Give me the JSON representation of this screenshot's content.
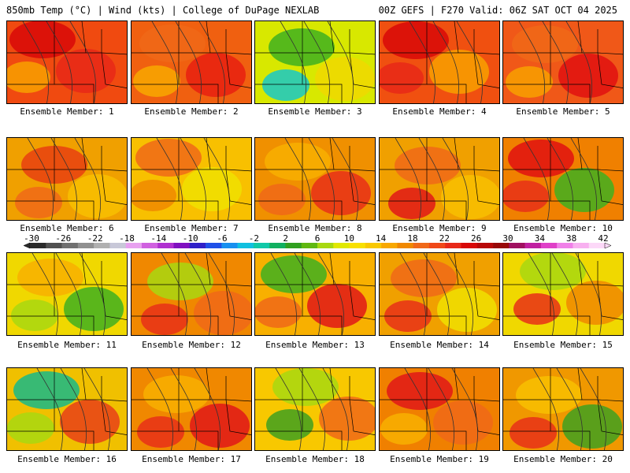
{
  "header": {
    "left": "850mb Temp (°C) | Wind (kts) | College of DuPage NEXLAB",
    "right": "00Z GEFS | F270 Valid: 06Z SAT OCT 04 2025"
  },
  "panels": [
    {
      "label": "Ensemble Member: 1",
      "base": "#f04a10",
      "blobs": [
        "#d80808",
        "#e82818",
        "#f8a000"
      ]
    },
    {
      "label": "Ensemble Member: 2",
      "base": "#f06010",
      "blobs": [
        "#e82010",
        "#f8a800",
        "#f06818"
      ]
    },
    {
      "label": "Ensemble Member: 3",
      "base": "#d8e800",
      "blobs": [
        "#18c8c8",
        "#40b020",
        "#f0d800"
      ]
    },
    {
      "label": "Ensemble Member: 4",
      "base": "#f05010",
      "blobs": [
        "#d80808",
        "#f8a000",
        "#e82818"
      ]
    },
    {
      "label": "Ensemble Member: 5",
      "base": "#f05818",
      "blobs": [
        "#e01010",
        "#f8a000",
        "#f06818"
      ]
    },
    {
      "label": "Ensemble Member: 6",
      "base": "#f0a000",
      "blobs": [
        "#f06818",
        "#e84010",
        "#f8c000"
      ]
    },
    {
      "label": "Ensemble Member: 7",
      "base": "#f8c000",
      "blobs": [
        "#f06818",
        "#f0e000",
        "#f08800"
      ]
    },
    {
      "label": "Ensemble Member: 8",
      "base": "#f09000",
      "blobs": [
        "#e83018",
        "#f06818",
        "#f8b000"
      ]
    },
    {
      "label": "Ensemble Member: 9",
      "base": "#f0a000",
      "blobs": [
        "#e01818",
        "#f06818",
        "#f8c000"
      ]
    },
    {
      "label": "Ensemble Member: 10",
      "base": "#f08000",
      "blobs": [
        "#e01010",
        "#40b020",
        "#e83018"
      ]
    },
    {
      "label": "Ensemble Member: 11",
      "base": "#f0d800",
      "blobs": [
        "#40b020",
        "#a8d810",
        "#f8b000"
      ]
    },
    {
      "label": "Ensemble Member: 12",
      "base": "#f08800",
      "blobs": [
        "#e83018",
        "#a8d810",
        "#f06818"
      ]
    },
    {
      "label": "Ensemble Member: 13",
      "base": "#f8b000",
      "blobs": [
        "#40b020",
        "#e01818",
        "#f06818"
      ]
    },
    {
      "label": "Ensemble Member: 14",
      "base": "#f0a000",
      "blobs": [
        "#f0e000",
        "#e83018",
        "#f06818"
      ]
    },
    {
      "label": "Ensemble Member: 15",
      "base": "#f0d800",
      "blobs": [
        "#e83018",
        "#a8d810",
        "#f08800"
      ]
    },
    {
      "label": "Ensemble Member: 16",
      "base": "#f0c000",
      "blobs": [
        "#18b888",
        "#e84018",
        "#a8d810"
      ]
    },
    {
      "label": "Ensemble Member: 17",
      "base": "#f08800",
      "blobs": [
        "#e01818",
        "#e83018",
        "#f8b000"
      ]
    },
    {
      "label": "Ensemble Member: 18",
      "base": "#f8c800",
      "blobs": [
        "#40a020",
        "#a8d810",
        "#f06818"
      ]
    },
    {
      "label": "Ensemble Member: 19",
      "base": "#f08000",
      "blobs": [
        "#e01818",
        "#f06818",
        "#f8b000"
      ]
    },
    {
      "label": "Ensemble Member: 20",
      "base": "#f09800",
      "blobs": [
        "#40a020",
        "#e83018",
        "#f8c000"
      ]
    }
  ],
  "colorbar": {
    "labels": [
      "-30",
      "-26",
      "-22",
      "-18",
      "-14",
      "-10",
      "-6",
      "-2",
      "2",
      "6",
      "10",
      "14",
      "18",
      "22",
      "26",
      "30",
      "34",
      "38",
      "42"
    ],
    "colors": [
      "#2a2a2a",
      "#505050",
      "#707070",
      "#909090",
      "#b0b0b0",
      "#c8c8d8",
      "#e8a0f0",
      "#d060e0",
      "#b030d0",
      "#8010c0",
      "#3020c8",
      "#2050e8",
      "#1890f0",
      "#10c0e0",
      "#10c8a8",
      "#10b060",
      "#30a020",
      "#60b810",
      "#a8d810",
      "#e0e800",
      "#f8e000",
      "#f8c800",
      "#f8a800",
      "#f08800",
      "#f06818",
      "#f04818",
      "#e82818",
      "#d80808",
      "#b80808",
      "#980808",
      "#a01060",
      "#c020a0",
      "#e040c8",
      "#f080e8",
      "#f8b0f0",
      "#fcd8f8"
    ]
  }
}
